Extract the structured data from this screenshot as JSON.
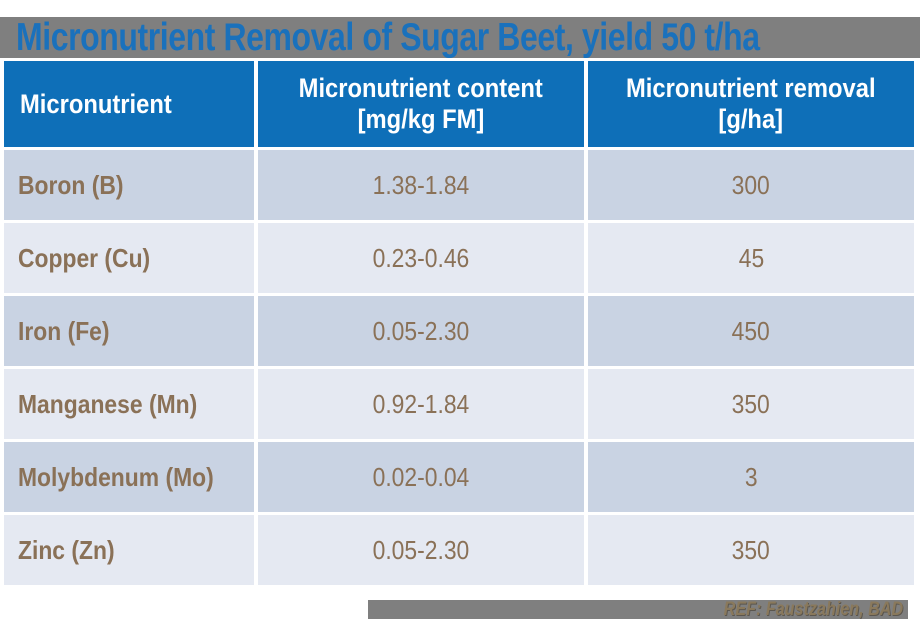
{
  "page": {
    "title": "Micronutrient Removal of Sugar Beet, yield 50 t/ha",
    "ref_label": "REF: Faustzahien, BAD"
  },
  "colors": {
    "band_gray": "#7f7f7f",
    "title_blue": "#1a71bc",
    "header_blue": "#0e6fb8",
    "row_dark": "#c9d3e3",
    "row_light": "#e5e9f2",
    "body_text_brown": "#8a7157",
    "ref_text_tan": "#8a795c",
    "header_text": "#ffffff"
  },
  "table": {
    "header": {
      "col1": "Micronutrient",
      "col2_line1": "Micronutrient content",
      "col2_line2": "[mg/kg FM]",
      "col3_line1": "Micronutrient removal",
      "col3_line2": "[g/ha]"
    },
    "rows": [
      {
        "name": "Boron (B)",
        "content": "1.38-1.84",
        "removal": "300"
      },
      {
        "name": "Copper (Cu)",
        "content": "0.23-0.46",
        "removal": "45"
      },
      {
        "name": "Iron (Fe)",
        "content": "0.05-2.30",
        "removal": "450"
      },
      {
        "name": "Manganese (Mn)",
        "content": "0.92-1.84",
        "removal": "350"
      },
      {
        "name": "Molybdenum (Mo)",
        "content": "0.02-0.04",
        "removal": "3"
      },
      {
        "name": "Zinc (Zn)",
        "content": "0.05-2.30",
        "removal": "350"
      }
    ]
  },
  "chart_data": {
    "type": "table",
    "title": "Micronutrient Removal of Sugar Beet, yield 50 t/ha",
    "columns": [
      "Micronutrient",
      "Micronutrient content [mg/kg FM]",
      "Micronutrient removal [g/ha]"
    ],
    "rows": [
      [
        "Boron (B)",
        "1.38-1.84",
        300
      ],
      [
        "Copper (Cu)",
        "0.23-0.46",
        45
      ],
      [
        "Iron (Fe)",
        "0.05-2.30",
        450
      ],
      [
        "Manganese (Mn)",
        "0.92-1.84",
        350
      ],
      [
        "Molybdenum (Mo)",
        "0.02-0.04",
        3
      ],
      [
        "Zinc (Zn)",
        "0.05-2.30",
        350
      ]
    ],
    "annotations": [
      "REF: Faustzahien, BAD"
    ]
  }
}
